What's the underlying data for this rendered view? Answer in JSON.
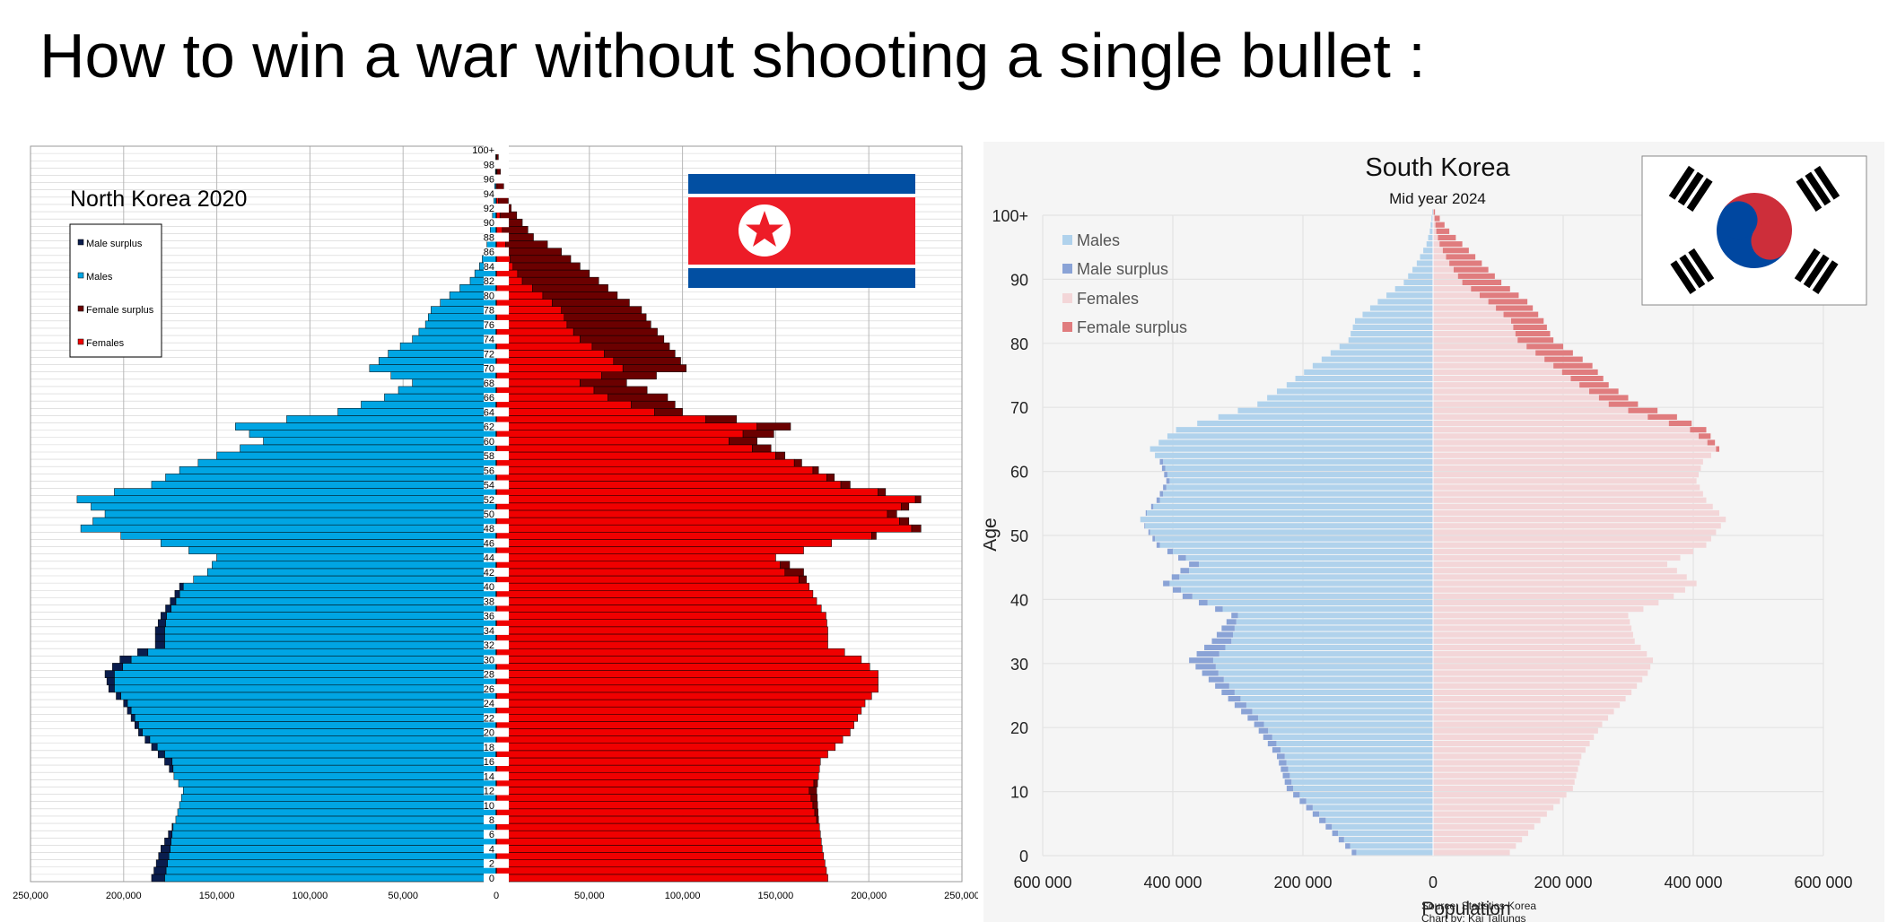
{
  "headline": "How to win a war without shooting a single bullet :",
  "chart_data": [
    {
      "type": "bar",
      "title": "North Korea 2020",
      "orientation": "horizontal",
      "legend": [
        "Male surplus",
        "Males",
        "Female surplus",
        "Females"
      ],
      "legend_position": "top-left",
      "grid": true,
      "x_ticks": [
        "250,000",
        "200,000",
        "150,000",
        "100,000",
        "50,000",
        "0",
        "50,000",
        "100,000",
        "150,000",
        "200,000",
        "250,000"
      ],
      "xlim": [
        -250000,
        250000
      ],
      "age_labels": [
        "0",
        "2",
        "4",
        "6",
        "8",
        "10",
        "12",
        "14",
        "16",
        "18",
        "20",
        "22",
        "24",
        "26",
        "28",
        "30",
        "32",
        "34",
        "36",
        "38",
        "40",
        "42",
        "44",
        "46",
        "48",
        "50",
        "52",
        "54",
        "56",
        "58",
        "60",
        "62",
        "64",
        "66",
        "68",
        "70",
        "72",
        "74",
        "76",
        "78",
        "80",
        "82",
        "84",
        "86",
        "88",
        "90",
        "92",
        "94",
        "96",
        "98",
        "100+"
      ],
      "age_anchor_points": [
        [
          0,
          185000,
          178000
        ],
        [
          4,
          180000,
          175000
        ],
        [
          8,
          172000,
          173000
        ],
        [
          12,
          168000,
          172000
        ],
        [
          16,
          178000,
          174000
        ],
        [
          20,
          192000,
          190000
        ],
        [
          24,
          200000,
          198000
        ],
        [
          26,
          208000,
          205000
        ],
        [
          28,
          210000,
          205000
        ],
        [
          30,
          202000,
          196000
        ],
        [
          32,
          183000,
          178000
        ],
        [
          34,
          183000,
          178000
        ],
        [
          36,
          180000,
          177000
        ],
        [
          38,
          175000,
          172000
        ],
        [
          40,
          170000,
          168000
        ],
        [
          42,
          155000,
          165000
        ],
        [
          44,
          150000,
          150000
        ],
        [
          46,
          180000,
          180000
        ],
        [
          48,
          223000,
          228000
        ],
        [
          50,
          210000,
          215000
        ],
        [
          52,
          225000,
          228000
        ],
        [
          54,
          185000,
          190000
        ],
        [
          56,
          170000,
          173000
        ],
        [
          58,
          150000,
          155000
        ],
        [
          60,
          125000,
          140000
        ],
        [
          62,
          140000,
          158000
        ],
        [
          64,
          85000,
          100000
        ],
        [
          66,
          60000,
          92000
        ],
        [
          68,
          45000,
          70000
        ],
        [
          70,
          68000,
          102000
        ],
        [
          72,
          58000,
          96000
        ],
        [
          74,
          45000,
          90000
        ],
        [
          76,
          38000,
          83000
        ],
        [
          78,
          35000,
          78000
        ],
        [
          80,
          25000,
          65000
        ],
        [
          82,
          14000,
          55000
        ],
        [
          84,
          9000,
          45000
        ],
        [
          86,
          6000,
          35000
        ],
        [
          88,
          4000,
          20000
        ],
        [
          90,
          2500,
          14000
        ],
        [
          92,
          1500,
          8000
        ],
        [
          94,
          1000,
          5000
        ],
        [
          96,
          600,
          3000
        ],
        [
          98,
          300,
          1500
        ],
        [
          100,
          200,
          800
        ]
      ]
    },
    {
      "type": "bar",
      "title": "South Korea",
      "subtitle": "Mid year 2024",
      "orientation": "horizontal",
      "legend": [
        "Males",
        "Male surplus",
        "Females",
        "Female surplus"
      ],
      "legend_position": "top-left",
      "grid": true,
      "xlabel": "Population",
      "ylabel": "Age",
      "x_ticks": [
        "600 000",
        "400 000",
        "200 000",
        "0",
        "200 000",
        "400 000",
        "600 000"
      ],
      "xlim": [
        -600000,
        600000
      ],
      "y_ticks": [
        "0",
        "10",
        "20",
        "30",
        "40",
        "50",
        "60",
        "70",
        "80",
        "90",
        "100+"
      ],
      "ylim": [
        0,
        100
      ],
      "age_anchor_points": [
        [
          0,
          125000,
          118000
        ],
        [
          5,
          175000,
          165000
        ],
        [
          10,
          225000,
          215000
        ],
        [
          15,
          240000,
          228000
        ],
        [
          20,
          275000,
          260000
        ],
        [
          25,
          325000,
          305000
        ],
        [
          28,
          355000,
          330000
        ],
        [
          30,
          375000,
          338000
        ],
        [
          33,
          340000,
          310000
        ],
        [
          37,
          310000,
          300000
        ],
        [
          40,
          385000,
          370000
        ],
        [
          42,
          415000,
          405000
        ],
        [
          45,
          375000,
          360000
        ],
        [
          48,
          425000,
          420000
        ],
        [
          52,
          450000,
          450000
        ],
        [
          55,
          425000,
          420000
        ],
        [
          58,
          410000,
          405000
        ],
        [
          61,
          420000,
          415000
        ],
        [
          63,
          435000,
          440000
        ],
        [
          66,
          395000,
          420000
        ],
        [
          68,
          330000,
          375000
        ],
        [
          70,
          270000,
          315000
        ],
        [
          73,
          225000,
          270000
        ],
        [
          76,
          185000,
          245000
        ],
        [
          80,
          130000,
          185000
        ],
        [
          83,
          120000,
          170000
        ],
        [
          86,
          85000,
          145000
        ],
        [
          89,
          45000,
          105000
        ],
        [
          92,
          25000,
          75000
        ],
        [
          95,
          10000,
          45000
        ],
        [
          97,
          5000,
          25000
        ],
        [
          100,
          1000,
          3000
        ]
      ],
      "source": "Source: Statistics Korea",
      "credit": "Chart by: Kai Tallungs"
    }
  ],
  "colors": {
    "nk_males": "#00A5E3",
    "nk_male_surplus": "#0A1D4D",
    "nk_females": "#F00000",
    "nk_female_surplus": "#6B0000",
    "sk_males": "#B0D2EC",
    "sk_male_surplus": "#8AA3D6",
    "sk_females": "#F3D6D8",
    "sk_female_surplus": "#E07C7E"
  },
  "flags": {
    "north_korea": "flag-north-korea-icon",
    "south_korea": "flag-south-korea-icon"
  }
}
